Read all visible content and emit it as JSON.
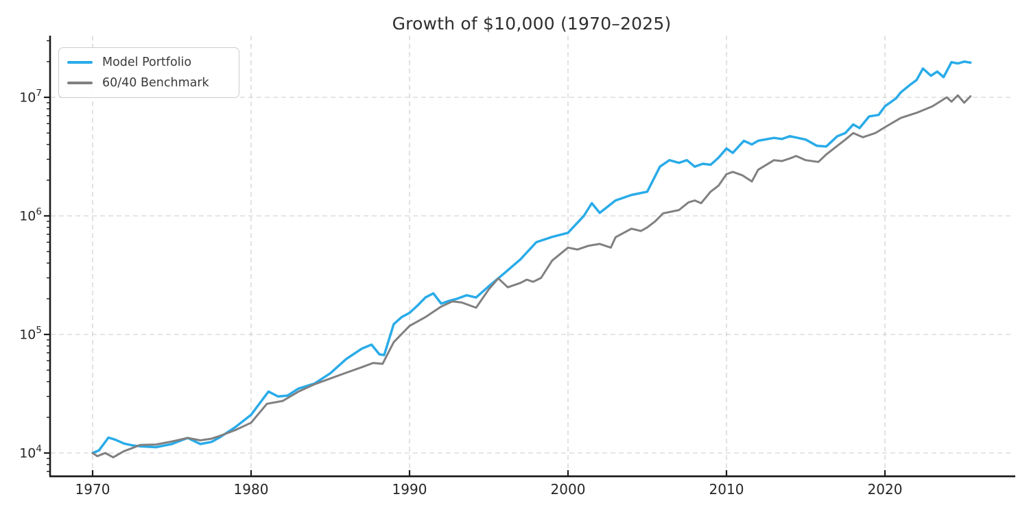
{
  "page": {
    "background": "#ffffff"
  },
  "chart_data": {
    "type": "line",
    "title": "Growth of $10,000 (1970–2025)",
    "xlabel": "",
    "ylabel": "",
    "x_axis": {
      "ticks": [
        1970,
        1980,
        1990,
        2000,
        2010,
        2020
      ],
      "range_years": [
        1967.3,
        2028.1
      ],
      "tick_direction": "in"
    },
    "y_axis": {
      "scale": "log",
      "tick_base": "10",
      "tick_exponents": [
        4,
        5,
        6,
        7
      ],
      "range": [
        6300,
        33000000
      ],
      "tick_direction": "out"
    },
    "grid": {
      "visible": true,
      "style": "dashed",
      "color": "#cbcbcb"
    },
    "axis_color": "#1b1b1b",
    "text_color": "#262626",
    "legend": {
      "position": "upper-left"
    },
    "series": [
      {
        "name": "Model Portfolio",
        "color": "#29ABE8",
        "line_width": 3.5,
        "points": [
          [
            1970,
            10000
          ],
          [
            1970.4,
            10500
          ],
          [
            1971,
            13500
          ],
          [
            1971.4,
            13000
          ],
          [
            1972,
            12000
          ],
          [
            1972.5,
            11600
          ],
          [
            1973,
            11400
          ],
          [
            1974,
            11200
          ],
          [
            1975,
            11900
          ],
          [
            1976,
            13400
          ],
          [
            1976.8,
            11900
          ],
          [
            1977.5,
            12400
          ],
          [
            1978,
            13500
          ],
          [
            1979,
            16500
          ],
          [
            1980,
            21000
          ],
          [
            1981.1,
            33000
          ],
          [
            1981.7,
            30000
          ],
          [
            1982.3,
            30500
          ],
          [
            1983,
            35000
          ],
          [
            1984,
            38500
          ],
          [
            1985,
            47000
          ],
          [
            1986,
            62000
          ],
          [
            1987,
            76000
          ],
          [
            1987.6,
            82000
          ],
          [
            1988.1,
            68000
          ],
          [
            1988.4,
            67000
          ],
          [
            1989,
            122000
          ],
          [
            1989.5,
            140000
          ],
          [
            1990,
            152000
          ],
          [
            1990.5,
            175000
          ],
          [
            1991,
            205000
          ],
          [
            1991.5,
            222000
          ],
          [
            1992,
            182000
          ],
          [
            1992.5,
            192000
          ],
          [
            1993,
            200000
          ],
          [
            1993.6,
            214000
          ],
          [
            1994.2,
            205000
          ],
          [
            1995,
            255000
          ],
          [
            1996,
            330000
          ],
          [
            1997,
            430000
          ],
          [
            1998,
            600000
          ],
          [
            1999,
            665000
          ],
          [
            2000,
            720000
          ],
          [
            2001,
            1000000
          ],
          [
            2001.5,
            1280000
          ],
          [
            2002,
            1060000
          ],
          [
            2003,
            1350000
          ],
          [
            2004,
            1500000
          ],
          [
            2005,
            1600000
          ],
          [
            2005.8,
            2600000
          ],
          [
            2006.4,
            2950000
          ],
          [
            2007,
            2800000
          ],
          [
            2007.5,
            2950000
          ],
          [
            2008,
            2600000
          ],
          [
            2008.5,
            2750000
          ],
          [
            2009,
            2700000
          ],
          [
            2009.5,
            3100000
          ],
          [
            2010,
            3700000
          ],
          [
            2010.4,
            3400000
          ],
          [
            2011.1,
            4300000
          ],
          [
            2011.6,
            4000000
          ],
          [
            2012,
            4300000
          ],
          [
            2013,
            4550000
          ],
          [
            2013.5,
            4450000
          ],
          [
            2014,
            4700000
          ],
          [
            2015,
            4400000
          ],
          [
            2015.7,
            3900000
          ],
          [
            2016.3,
            3850000
          ],
          [
            2017,
            4700000
          ],
          [
            2017.5,
            5000000
          ],
          [
            2018,
            5900000
          ],
          [
            2018.4,
            5500000
          ],
          [
            2019,
            6900000
          ],
          [
            2019.6,
            7100000
          ],
          [
            2020,
            8400000
          ],
          [
            2020.7,
            9800000
          ],
          [
            2021,
            11000000
          ],
          [
            2021.6,
            12800000
          ],
          [
            2022,
            14000000
          ],
          [
            2022.4,
            17500000
          ],
          [
            2022.9,
            15200000
          ],
          [
            2023.3,
            16500000
          ],
          [
            2023.7,
            14800000
          ],
          [
            2024.2,
            19800000
          ],
          [
            2024.6,
            19300000
          ],
          [
            2025,
            20000000
          ],
          [
            2025.4,
            19600000
          ]
        ]
      },
      {
        "name": "60/40 Benchmark",
        "color": "#808080",
        "line_width": 3,
        "points": [
          [
            1970,
            10000
          ],
          [
            1970.3,
            9400
          ],
          [
            1970.8,
            10000
          ],
          [
            1971.3,
            9200
          ],
          [
            1972,
            10400
          ],
          [
            1972.5,
            11000
          ],
          [
            1973,
            11700
          ],
          [
            1974,
            11800
          ],
          [
            1975,
            12500
          ],
          [
            1976,
            13400
          ],
          [
            1976.8,
            12800
          ],
          [
            1977.5,
            13200
          ],
          [
            1978,
            13900
          ],
          [
            1979,
            15600
          ],
          [
            1980,
            18000
          ],
          [
            1981,
            26000
          ],
          [
            1982,
            27500
          ],
          [
            1983,
            33000
          ],
          [
            1984,
            38000
          ],
          [
            1985,
            42500
          ],
          [
            1986,
            47500
          ],
          [
            1987,
            53000
          ],
          [
            1987.7,
            57500
          ],
          [
            1988.3,
            56500
          ],
          [
            1989,
            86000
          ],
          [
            1990,
            118000
          ],
          [
            1991,
            140000
          ],
          [
            1992,
            172000
          ],
          [
            1992.7,
            190000
          ],
          [
            1993.3,
            186000
          ],
          [
            1994.2,
            168000
          ],
          [
            1995,
            240000
          ],
          [
            1995.6,
            297000
          ],
          [
            1996.2,
            250000
          ],
          [
            1997,
            272000
          ],
          [
            1997.4,
            290000
          ],
          [
            1997.8,
            278000
          ],
          [
            1998.3,
            300000
          ],
          [
            1999,
            420000
          ],
          [
            2000,
            540000
          ],
          [
            2000.6,
            520000
          ],
          [
            2001.3,
            560000
          ],
          [
            2002,
            580000
          ],
          [
            2002.7,
            540000
          ],
          [
            2003,
            660000
          ],
          [
            2004,
            780000
          ],
          [
            2004.6,
            745000
          ],
          [
            2005,
            800000
          ],
          [
            2005.5,
            900000
          ],
          [
            2006,
            1050000
          ],
          [
            2007,
            1120000
          ],
          [
            2007.6,
            1300000
          ],
          [
            2008,
            1350000
          ],
          [
            2008.4,
            1280000
          ],
          [
            2009,
            1600000
          ],
          [
            2009.5,
            1800000
          ],
          [
            2010,
            2250000
          ],
          [
            2010.4,
            2350000
          ],
          [
            2011,
            2200000
          ],
          [
            2011.6,
            1950000
          ],
          [
            2012,
            2450000
          ],
          [
            2013,
            2950000
          ],
          [
            2013.5,
            2900000
          ],
          [
            2014,
            3050000
          ],
          [
            2014.4,
            3200000
          ],
          [
            2015,
            2950000
          ],
          [
            2015.8,
            2850000
          ],
          [
            2016.3,
            3300000
          ],
          [
            2017,
            3900000
          ],
          [
            2017.5,
            4400000
          ],
          [
            2018,
            5000000
          ],
          [
            2018.6,
            4600000
          ],
          [
            2019.4,
            5000000
          ],
          [
            2020,
            5600000
          ],
          [
            2021,
            6700000
          ],
          [
            2022,
            7400000
          ],
          [
            2023,
            8400000
          ],
          [
            2023.9,
            10000000
          ],
          [
            2024.2,
            9200000
          ],
          [
            2024.6,
            10400000
          ],
          [
            2025,
            9000000
          ],
          [
            2025.4,
            10200000
          ]
        ]
      }
    ]
  }
}
